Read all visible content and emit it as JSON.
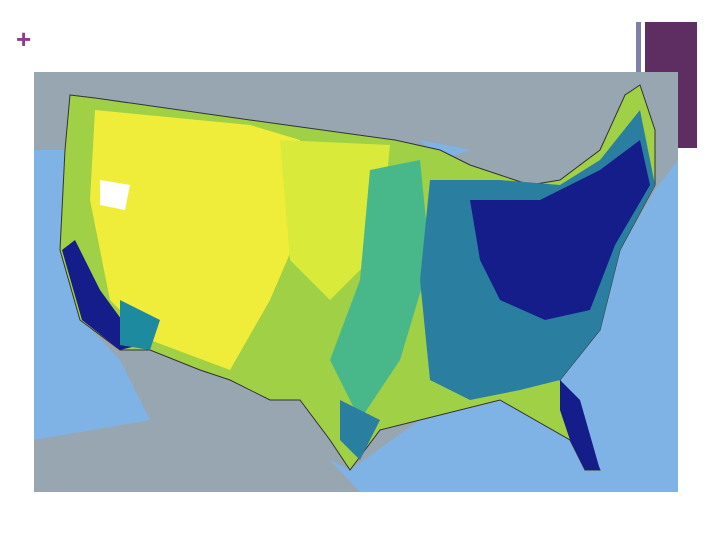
{
  "slide": {
    "marker": "+"
  }
}
